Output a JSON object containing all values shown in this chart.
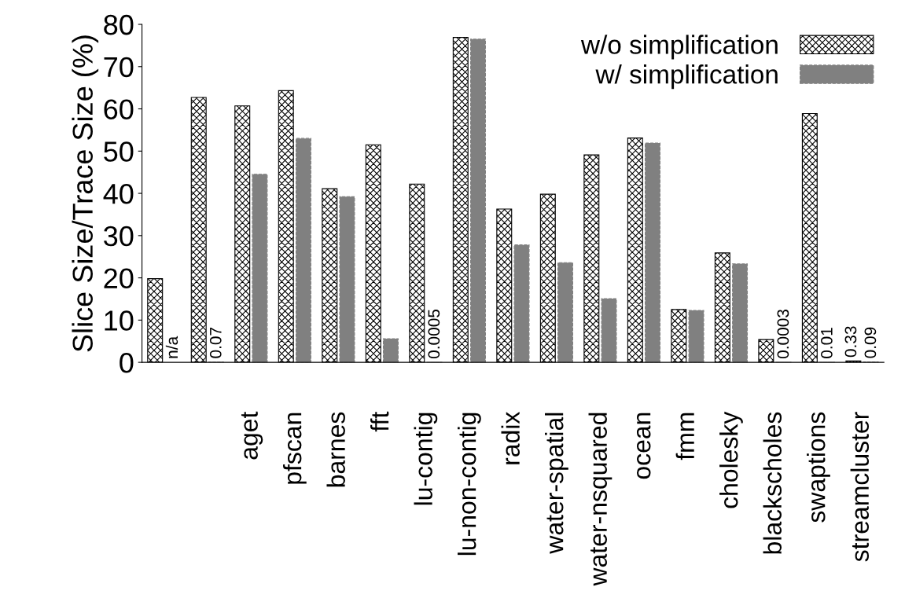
{
  "chart_data": {
    "type": "bar",
    "ylabel": "Slice Size/Trace Size (%)",
    "categories": [
      null,
      null,
      "aget",
      "pfscan",
      "barnes",
      "fft",
      "lu-contig",
      "lu-non-contig",
      "radix",
      "water-spatial",
      "water-nsquared",
      "ocean",
      "fmm",
      "cholesky",
      "blackscholes",
      "swaptions",
      "streamcluster"
    ],
    "series": [
      {
        "name": "w/o simplification",
        "color": "#000000",
        "values": [
          19.8,
          62.7,
          60.7,
          64.3,
          41.1,
          51.5,
          42.2,
          76.9,
          36.3,
          39.8,
          49.1,
          53.1,
          12.5,
          25.9,
          5.4,
          58.9,
          0.33
        ],
        "value_labels": [
          null,
          null,
          null,
          null,
          null,
          null,
          null,
          null,
          null,
          null,
          null,
          null,
          null,
          null,
          null,
          null,
          "0.33"
        ]
      },
      {
        "name": "w/ simplification",
        "color": "#808080",
        "values": [
          null,
          0.07,
          44.5,
          53.0,
          39.2,
          5.6,
          0.0005,
          76.5,
          27.8,
          23.6,
          15.1,
          51.9,
          12.3,
          23.3,
          0.0003,
          0.01,
          0.09
        ],
        "value_labels": [
          "n/a",
          "0.07",
          null,
          null,
          null,
          null,
          "0.0005",
          null,
          null,
          null,
          null,
          null,
          null,
          null,
          "0.0003",
          "0.01",
          "0.09"
        ]
      }
    ],
    "ylim": [
      0,
      80
    ],
    "yticks": [
      0,
      10,
      20,
      30,
      40,
      50,
      60,
      70,
      80
    ],
    "grid": false,
    "legend": "top right"
  }
}
